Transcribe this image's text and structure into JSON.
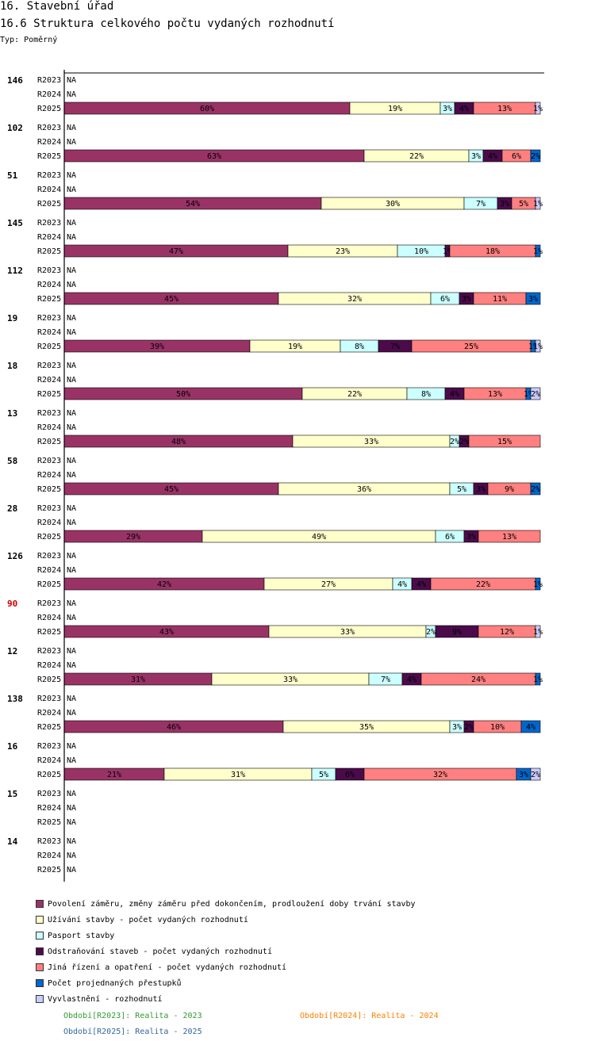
{
  "header": {
    "title": "16. Stavební úřad",
    "subtitle": "16.6 Struktura celkového počtu vydaných rozhodnutí",
    "type_label": "Typ: Poměrný"
  },
  "colors": {
    "Povolení": "#993366",
    "Užívání": "#ffffcc",
    "Pasport": "#ccffff",
    "Odstraňování": "#4b0b4b",
    "Jiná": "#ff8080",
    "Přestupky": "#0066cc",
    "Vyvlastnění": "#ccccff"
  },
  "chart_data": {
    "type": "bar",
    "orientation": "horizontal",
    "stacked": true,
    "normalized": true,
    "title": "16.6 Struktura celkového počtu vydaných rozhodnutí",
    "xlim": [
      0,
      100
    ],
    "series_names": [
      "Povolení záměru,  změny záměru před dokončením, prodloužení doby trvání stavby",
      "Užívání stavby - počet vydaných rozhodnutí",
      "Pasport stavby",
      "Odstraňování staveb - počet vydaných rozhodnutí",
      "Jiná řízení a opatření - počet vydaných rozhodnutí",
      "Počet projednaných přestupků",
      "Vyvlastnění - rozhodnutí"
    ],
    "series_colors": [
      "#993366",
      "#ffffcc",
      "#ccffff",
      "#4b0b4b",
      "#ff8080",
      "#0066cc",
      "#ccccff"
    ],
    "groups": [
      {
        "id": "146",
        "highlight": false,
        "R2025": [
          60,
          19,
          3,
          4,
          13,
          0,
          1
        ]
      },
      {
        "id": "102",
        "highlight": false,
        "R2025": [
          63,
          22,
          3,
          4,
          6,
          2,
          0
        ]
      },
      {
        "id": "51",
        "highlight": false,
        "R2025": [
          54,
          30,
          7,
          3,
          5,
          0,
          1
        ]
      },
      {
        "id": "145",
        "highlight": false,
        "R2025": [
          47,
          23,
          10,
          1,
          18,
          1,
          0
        ]
      },
      {
        "id": "112",
        "highlight": false,
        "R2025": [
          45,
          32,
          6,
          3,
          11,
          3,
          0
        ]
      },
      {
        "id": "19",
        "highlight": false,
        "R2025": [
          39,
          19,
          8,
          7,
          25,
          1,
          1
        ]
      },
      {
        "id": "18",
        "highlight": false,
        "R2025": [
          50,
          22,
          8,
          4,
          13,
          1,
          2
        ]
      },
      {
        "id": "13",
        "highlight": false,
        "R2025": [
          48,
          33,
          2,
          2,
          15,
          0,
          0
        ]
      },
      {
        "id": "58",
        "highlight": false,
        "R2025": [
          45,
          36,
          5,
          3,
          9,
          2,
          0
        ]
      },
      {
        "id": "28",
        "highlight": false,
        "R2025": [
          29,
          49,
          6,
          3,
          13,
          0,
          0
        ]
      },
      {
        "id": "126",
        "highlight": false,
        "R2025": [
          42,
          27,
          4,
          4,
          22,
          1,
          0
        ]
      },
      {
        "id": "90",
        "highlight": true,
        "R2025": [
          43,
          33,
          2,
          9,
          12,
          0,
          1
        ]
      },
      {
        "id": "12",
        "highlight": false,
        "R2025": [
          31,
          33,
          7,
          4,
          24,
          1,
          0
        ]
      },
      {
        "id": "138",
        "highlight": false,
        "R2025": [
          46,
          35,
          3,
          2,
          10,
          4,
          0
        ]
      },
      {
        "id": "16",
        "highlight": false,
        "R2025": [
          21,
          31,
          5,
          6,
          32,
          3,
          2
        ]
      },
      {
        "id": "15",
        "highlight": false,
        "R2025": null
      },
      {
        "id": "14",
        "highlight": false,
        "R2025": null
      }
    ],
    "row_labels": [
      "R2023",
      "R2024",
      "R2025"
    ],
    "na_label": "NA"
  },
  "legend": {
    "items": [
      "Povolení záměru,  změny záměru před dokončením, prodloužení doby trvání stavby",
      "Užívání stavby - počet vydaných rozhodnutí",
      "Pasport stavby",
      "Odstraňování staveb - počet vydaných rozhodnutí",
      "Jiná řízení a opatření - počet vydaných rozhodnutí",
      "Počet projednaných přestupků",
      "Vyvlastnění - rozhodnutí"
    ]
  },
  "periods": {
    "p2023": "Období[R2023]: Realita - 2023",
    "p2024": "Období[R2024]: Realita - 2024",
    "p2025": "Období[R2025]: Realita - 2025",
    "c2023": "#339933",
    "c2024": "#ff8000",
    "c2025": "#336699"
  }
}
